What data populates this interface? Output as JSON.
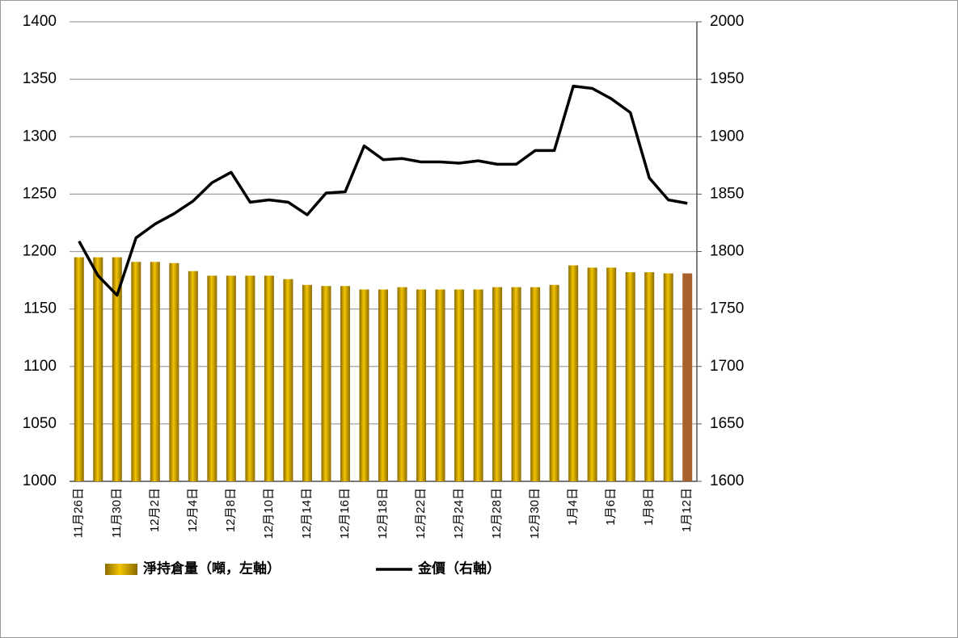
{
  "chart_data": {
    "type": "bar-line",
    "categories": [
      "11月26日",
      null,
      "11月30日",
      null,
      "12月2日",
      null,
      "12月4日",
      null,
      "12月8日",
      null,
      "12月10日",
      null,
      "12月14日",
      null,
      "12月16日",
      null,
      "12月18日",
      null,
      "12月22日",
      null,
      "12月24日",
      null,
      "12月28日",
      null,
      "12月30日",
      null,
      "1月4日",
      null,
      "1月6日",
      null,
      "1月8日",
      null,
      "1月12日"
    ],
    "series": [
      {
        "name": "淨持倉量（噸，左軸）",
        "type": "bar",
        "axis": "y",
        "color": "#c9a10a",
        "colors": [
          "#c9a10a",
          "#c9a10a",
          "#c9a10a",
          "#c9a10a",
          "#c9a10a",
          "#c9a10a",
          "#c9a10a",
          "#c9a10a",
          "#c9a10a",
          "#c9a10a",
          "#c9a10a",
          "#c9a10a",
          "#c9a10a",
          "#c9a10a",
          "#c9a10a",
          "#c9a10a",
          "#c9a10a",
          "#c9a10a",
          "#c9a10a",
          "#c9a10a",
          "#c9a10a",
          "#c9a10a",
          "#c9a10a",
          "#c9a10a",
          "#c9a10a",
          "#c9a10a",
          "#c9a10a",
          "#c9a10a",
          "#c9a10a",
          "#c9a10a",
          "#c9a10a",
          "#c9a10a",
          "#a8612a"
        ],
        "values": [
          1195,
          1195,
          1195,
          1191,
          1191,
          1190,
          1183,
          1179,
          1179,
          1179,
          1179,
          1176,
          1171,
          1170,
          1170,
          1167,
          1167,
          1169,
          1167,
          1167,
          1167,
          1167,
          1169,
          1169,
          1169,
          1171,
          1188,
          1186,
          1186,
          1182,
          1182,
          1181,
          1181
        ]
      },
      {
        "name": "金價（右軸）",
        "type": "line",
        "axis": "y2",
        "color": "#000000",
        "values": [
          1809,
          1779,
          1762,
          1812,
          1824,
          1833,
          1844,
          1860,
          1869,
          1843,
          1845,
          1843,
          1832,
          1851,
          1852,
          1892,
          1880,
          1881,
          1878,
          1878,
          1877,
          1879,
          1876,
          1876,
          1888,
          1888,
          1944,
          1942,
          1933,
          1921,
          1864,
          1845,
          1842
        ]
      }
    ],
    "ylim": [
      1000,
      1400
    ],
    "yticks": [
      1000,
      1050,
      1100,
      1150,
      1200,
      1250,
      1300,
      1350,
      1400
    ],
    "y2lim": [
      1600,
      2000
    ],
    "y2ticks": [
      1600,
      1650,
      1700,
      1750,
      1800,
      1850,
      1900,
      1950,
      2000
    ],
    "grid": true,
    "legend": "bottom"
  }
}
